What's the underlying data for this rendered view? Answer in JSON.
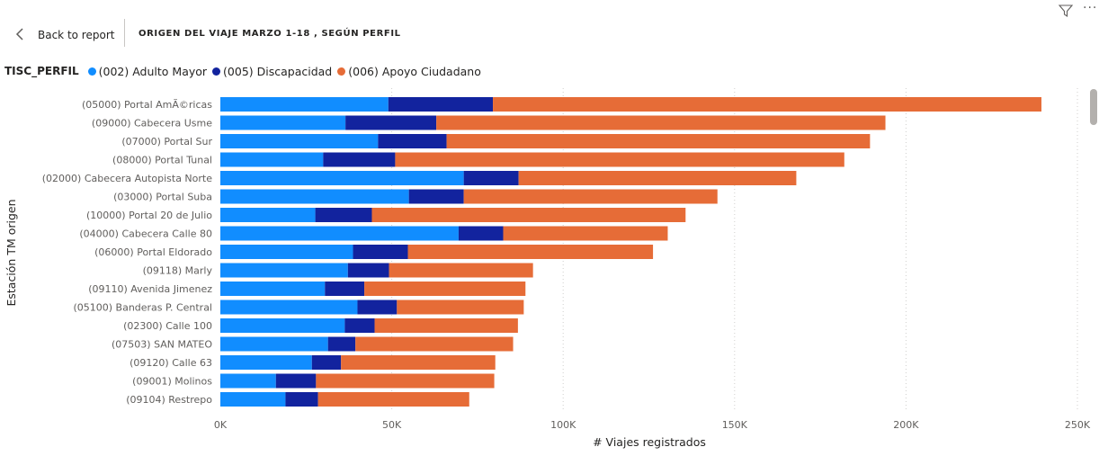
{
  "header": {
    "back_label": "Back to report",
    "title": "ORIGEN DEL VIAJE MARZO 1-18 , SEGÚN PERFIL"
  },
  "icons": {
    "back": "chevron-left-icon",
    "filter": "filter-icon",
    "more": "more-options-icon"
  },
  "legend": {
    "title": "TISC_PERFIL",
    "items": [
      {
        "label": "(002) Adulto Mayor",
        "color": "#118DFF"
      },
      {
        "label": "(005) Discapacidad",
        "color": "#12239E"
      },
      {
        "label": "(006) Apoyo Ciudadano",
        "color": "#E66C37"
      }
    ]
  },
  "chart_data": {
    "type": "bar",
    "orientation": "horizontal",
    "stacked": true,
    "xlabel": "# Viajes registrados",
    "ylabel": "Estación TM origen",
    "xlim": [
      0,
      250000
    ],
    "xticks": [
      0,
      50000,
      100000,
      150000,
      200000,
      250000
    ],
    "xtick_labels": [
      "0K",
      "50K",
      "100K",
      "150K",
      "200K",
      "250K"
    ],
    "grid": "vertical-dotted",
    "legend_position": "top-left",
    "categories": [
      "(05000) Portal AmÃ©ricas",
      "(09000) Cabecera Usme",
      "(07000) Portal Sur",
      "(08000) Portal Tunal",
      "(02000) Cabecera Autopista Norte",
      "(03000) Portal Suba",
      "(10000) Portal 20 de Julio",
      "(04000) Cabecera Calle 80",
      "(06000) Portal Eldorado",
      "(09118) Marly",
      "(09110) Avenida Jimenez",
      "(05100) Banderas P. Central",
      "(02300) Calle 100",
      "(07503) SAN MATEO",
      "(09120) Calle 63",
      "(09001) Molinos",
      "(09104) Restrepo"
    ],
    "series": [
      {
        "name": "(002) Adulto Mayor",
        "color": "#118DFF",
        "values": [
          49000,
          36500,
          46000,
          30000,
          71000,
          55000,
          27700,
          69500,
          38700,
          37200,
          30500,
          40000,
          36300,
          31400,
          26700,
          16200,
          19000
        ]
      },
      {
        "name": "(005) Discapacidad",
        "color": "#12239E",
        "values": [
          30500,
          26500,
          20000,
          21000,
          16000,
          16000,
          16500,
          13000,
          16000,
          12000,
          11500,
          11500,
          8700,
          8000,
          8500,
          11700,
          9500
        ]
      },
      {
        "name": "(006) Apoyo Ciudadano",
        "color": "#E66C37",
        "values": [
          160000,
          131000,
          123500,
          131000,
          81000,
          74000,
          91500,
          48000,
          71500,
          42000,
          47000,
          37000,
          41800,
          46000,
          45000,
          52000,
          44100
        ]
      }
    ]
  }
}
